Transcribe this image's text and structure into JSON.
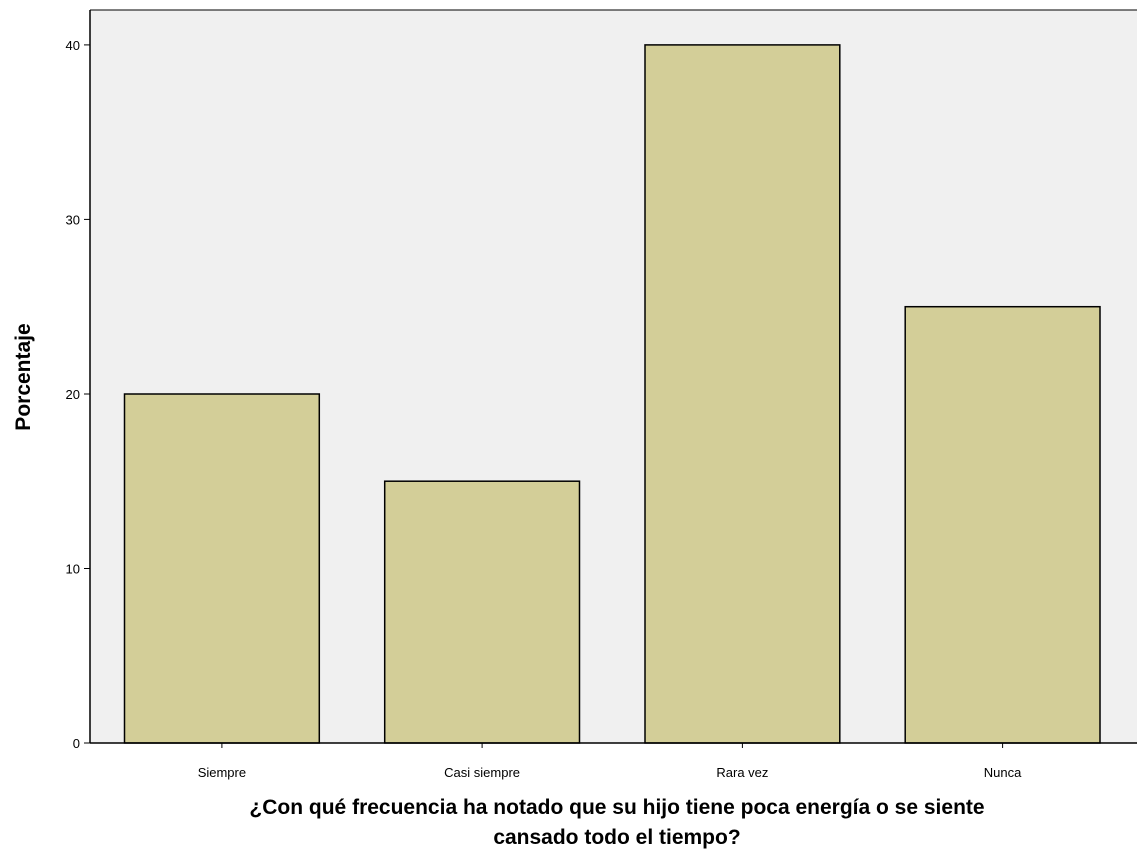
{
  "chart_data": {
    "type": "bar",
    "title": "",
    "categories": [
      "Siempre",
      "Casi siempre",
      "Rara vez",
      "Nunca"
    ],
    "values": [
      20,
      15,
      40,
      25
    ],
    "xlabel_lines": [
      "¿Con qué frecuencia ha notado que su hijo tiene poca energía o se siente",
      "cansado todo el tiempo?"
    ],
    "ylabel": "Porcentaje",
    "ylim": [
      0,
      42
    ],
    "yticks": [
      0,
      10,
      20,
      30,
      40
    ],
    "grid": false,
    "colors": {
      "bar_fill": "#d3ce98",
      "bar_stroke": "#000000",
      "plot_background": "#f0f0f0",
      "axis": "#000000"
    }
  }
}
